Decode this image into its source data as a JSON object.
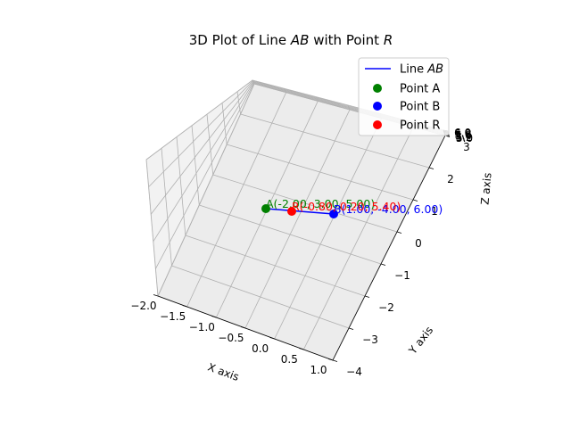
{
  "chart_data": {
    "type": "line3d",
    "title_prefix": "3D Plot of Line ",
    "title_ab": "AB",
    "title_mid": " with Point ",
    "title_r": "R",
    "xlabel": "X axis",
    "ylabel": "Y axis",
    "zlabel": "Z axis",
    "xlim": [
      -2.0,
      1.0
    ],
    "ylim": [
      -4.0,
      3.0
    ],
    "zlim": [
      5.0,
      6.0
    ],
    "x_ticks": [
      "−2.0",
      "−1.5",
      "−1.0",
      "−0.5",
      "0.0",
      "0.5",
      "1.0"
    ],
    "y_ticks": [
      "−4",
      "−3",
      "−2",
      "−1",
      "0",
      "1",
      "2",
      "3"
    ],
    "z_ticks": [
      "5.0",
      "5.2",
      "5.4",
      "5.6",
      "5.8",
      "6.0"
    ],
    "line": {
      "name_prefix": "Line ",
      "name_math": "AB",
      "color": "#0000ff",
      "from": [
        -2.0,
        3.0,
        5.0
      ],
      "to": [
        1.0,
        -4.0,
        6.0
      ]
    },
    "points": [
      {
        "name": "Point A",
        "label": "A(-2.00, 3.00, 5.00)",
        "color": "#008000",
        "xyz": [
          -2.0,
          3.0,
          5.0
        ]
      },
      {
        "name": "Point B",
        "label": "B(1.00, -4.00, 6.00)",
        "color": "#0000ff",
        "xyz": [
          1.0,
          -4.0,
          6.0
        ]
      },
      {
        "name": "Point R",
        "label": "R(-0.80, 0.20, 5.40)",
        "color": "#ff0000",
        "xyz": [
          -0.8,
          0.2,
          5.4
        ]
      }
    ],
    "grid": true,
    "legend_position": "top-right"
  }
}
